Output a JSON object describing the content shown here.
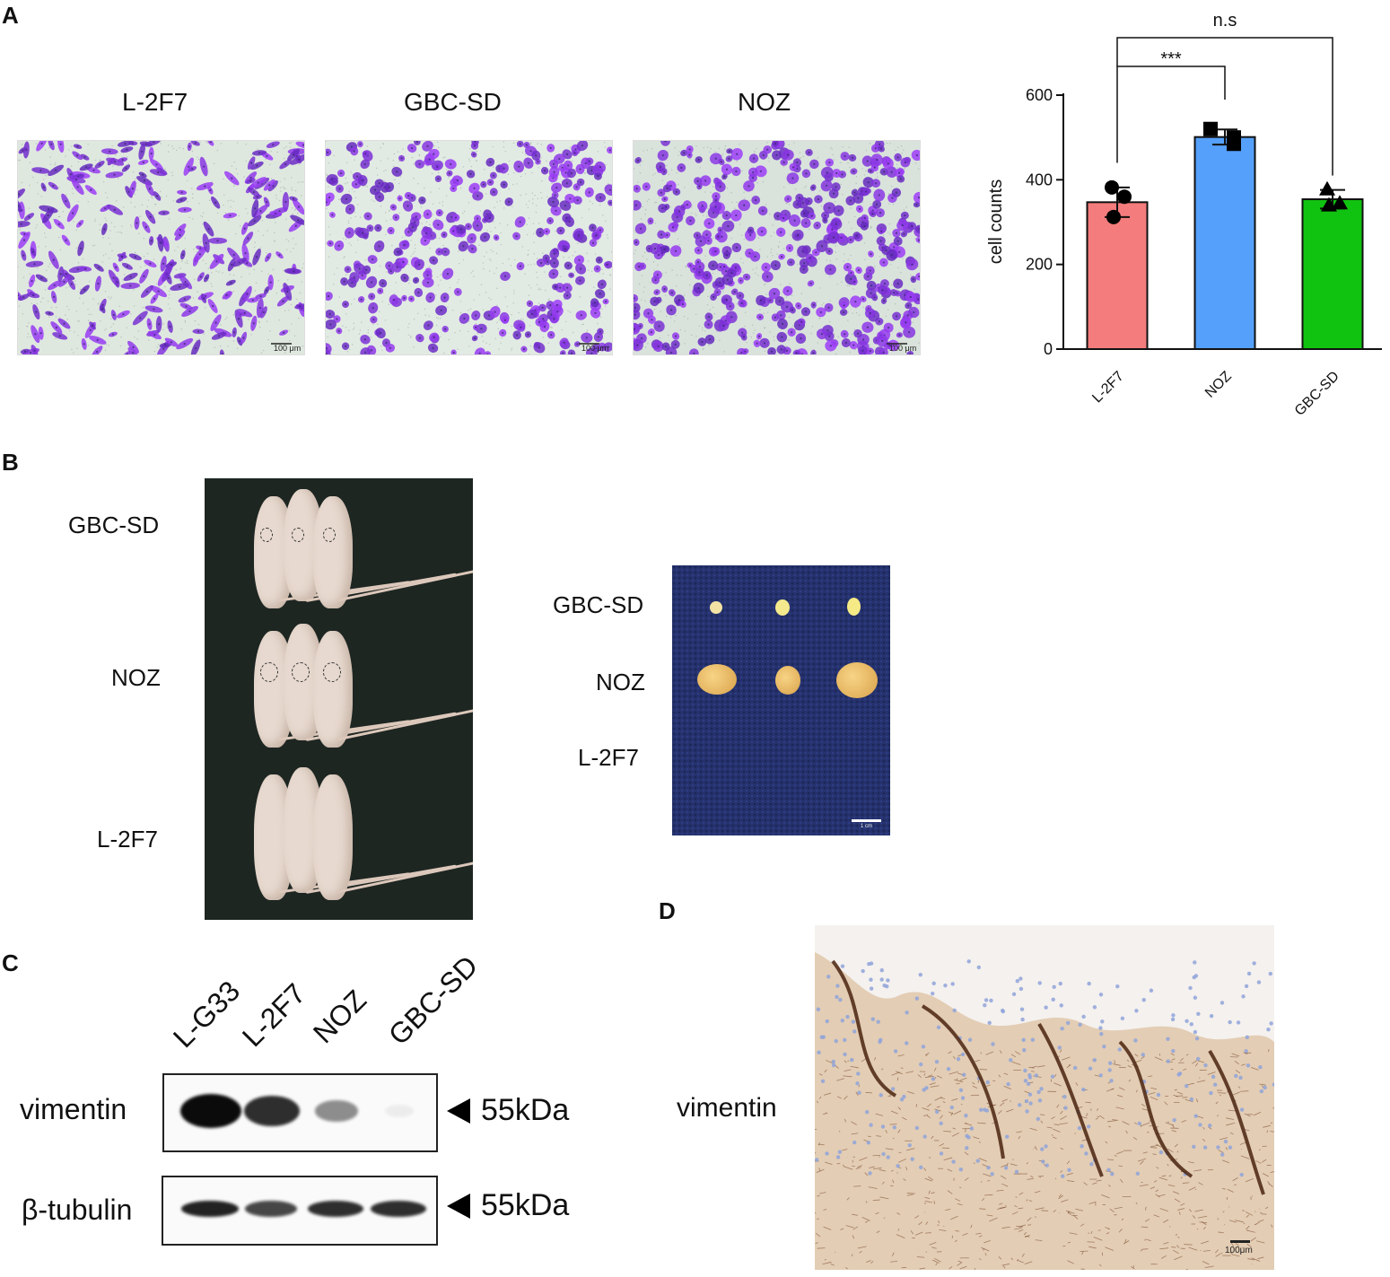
{
  "panels": {
    "A": {
      "letter": "A",
      "images": [
        {
          "label": "L-2F7",
          "scale_bar": "100 μm"
        },
        {
          "label": "GBC-SD",
          "scale_bar": "100 μm"
        },
        {
          "label": "NOZ",
          "scale_bar": "100 μm"
        }
      ]
    },
    "B": {
      "letter": "B",
      "mice_labels": [
        "GBC-SD",
        "NOZ",
        "L-2F7"
      ],
      "tumor_labels": [
        "GBC-SD",
        "NOZ",
        "L-2F7"
      ],
      "tumor_scale_bar": "1 cm"
    },
    "C": {
      "letter": "C",
      "lanes": [
        "L-G33",
        "L-2F7",
        "NOZ",
        "GBC-SD"
      ],
      "rows": [
        {
          "label": "vimentin",
          "size": "55kDa",
          "band_intensity": [
            1.0,
            0.85,
            0.45,
            0.05
          ]
        },
        {
          "label": "β-tubulin",
          "size": "55kDa",
          "band_intensity": [
            0.9,
            0.75,
            0.85,
            0.85
          ]
        }
      ]
    },
    "D": {
      "letter": "D",
      "label": "vimentin",
      "scale_bar": "100μm"
    }
  },
  "chart_data": {
    "type": "bar",
    "categories": [
      "L-2F7",
      "NOZ",
      "GBC-SD"
    ],
    "values": [
      347,
      501,
      354
    ],
    "errors": [
      35,
      18,
      22
    ],
    "points": [
      [
        382,
        360,
        312
      ],
      [
        520,
        485,
        500
      ],
      [
        378,
        345,
        340
      ]
    ],
    "point_markers": [
      "circle",
      "square",
      "triangle"
    ],
    "colors": [
      "#f47c7c",
      "#55a0fa",
      "#11c311"
    ],
    "ylabel": "cell counts",
    "ylim": [
      0,
      600
    ],
    "yticks": [
      0,
      200,
      400,
      600
    ],
    "significance": [
      {
        "from": "L-2F7",
        "to": "NOZ",
        "label": "***"
      },
      {
        "from": "L-2F7",
        "to": "GBC-SD",
        "label": "n.s"
      }
    ]
  }
}
